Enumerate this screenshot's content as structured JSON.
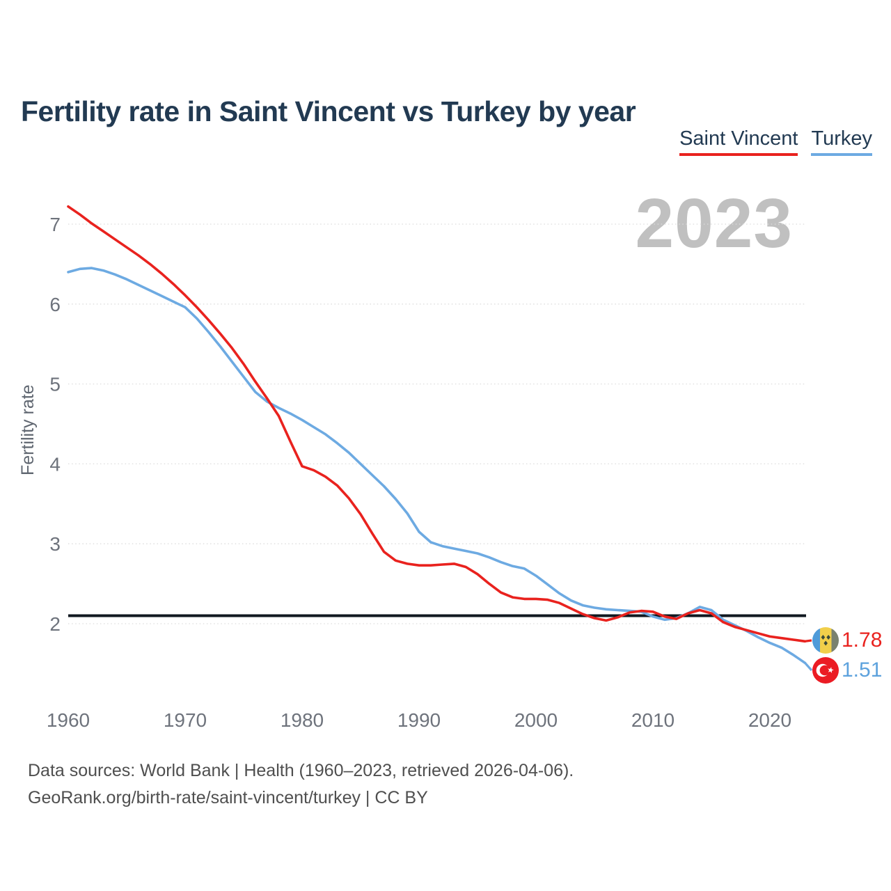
{
  "header": {
    "title": "Fertility rate in Saint Vincent vs Turkey by year"
  },
  "legend": [
    {
      "label": "Saint Vincent",
      "color": "#e9221e"
    },
    {
      "label": "Turkey",
      "color": "#6daae2"
    }
  ],
  "watermark": {
    "year": "2023"
  },
  "y_axis": {
    "label": "Fertility rate",
    "ticks": [
      7,
      6,
      5,
      4,
      3,
      2
    ]
  },
  "x_axis": {
    "ticks": [
      1960,
      1970,
      1980,
      1990,
      2000,
      2010,
      2020
    ]
  },
  "end_labels": [
    {
      "series": "Saint Vincent",
      "value": "1.78",
      "color": "#e9221e",
      "flag": "saint-vincent-flag"
    },
    {
      "series": "Turkey",
      "value": "1.51",
      "color": "#5da2dd",
      "flag": "turkey-flag"
    }
  ],
  "footer": {
    "line1": "Data sources: World Bank | Health (1960–2023, retrieved 2026-04-06).",
    "line2": "GeoRank.org/birth-rate/saint-vincent/turkey | CC BY"
  },
  "chart_data": {
    "type": "line",
    "title": "Fertility rate in Saint Vincent vs Turkey by year",
    "xlabel": "",
    "ylabel": "Fertility rate",
    "xlim": [
      1960,
      2023
    ],
    "ylim": [
      1.45,
      7.3
    ],
    "y_ticks": [
      2,
      3,
      4,
      5,
      6,
      7
    ],
    "x_ticks": [
      1960,
      1970,
      1980,
      1990,
      2000,
      2010,
      2020
    ],
    "grid": "horizontal-dotted",
    "legend_position": "top-right",
    "annotations": {
      "reference_line": 2.1,
      "watermark": "2023"
    },
    "x": [
      1960,
      1961,
      1962,
      1963,
      1964,
      1965,
      1966,
      1967,
      1968,
      1969,
      1970,
      1971,
      1972,
      1973,
      1974,
      1975,
      1976,
      1977,
      1978,
      1979,
      1980,
      1981,
      1982,
      1983,
      1984,
      1985,
      1986,
      1987,
      1988,
      1989,
      1990,
      1991,
      1992,
      1993,
      1994,
      1995,
      1996,
      1997,
      1998,
      1999,
      2000,
      2001,
      2002,
      2003,
      2004,
      2005,
      2006,
      2007,
      2008,
      2009,
      2010,
      2011,
      2012,
      2013,
      2014,
      2015,
      2016,
      2017,
      2018,
      2019,
      2020,
      2021,
      2022,
      2023
    ],
    "series": [
      {
        "name": "Saint Vincent",
        "color": "#e9221e",
        "values": [
          7.22,
          7.12,
          7.01,
          6.91,
          6.81,
          6.71,
          6.61,
          6.5,
          6.38,
          6.25,
          6.11,
          5.96,
          5.8,
          5.63,
          5.45,
          5.25,
          5.03,
          4.82,
          4.6,
          4.28,
          3.97,
          3.92,
          3.84,
          3.73,
          3.57,
          3.37,
          3.13,
          2.9,
          2.79,
          2.75,
          2.73,
          2.73,
          2.74,
          2.75,
          2.71,
          2.62,
          2.5,
          2.39,
          2.33,
          2.31,
          2.31,
          2.3,
          2.26,
          2.19,
          2.12,
          2.07,
          2.04,
          2.08,
          2.14,
          2.16,
          2.15,
          2.09,
          2.06,
          2.13,
          2.17,
          2.13,
          2.02,
          1.96,
          1.92,
          1.88,
          1.84,
          1.82,
          1.8,
          1.78
        ]
      },
      {
        "name": "Turkey",
        "color": "#6daae2",
        "values": [
          6.4,
          6.44,
          6.45,
          6.42,
          6.37,
          6.31,
          6.24,
          6.17,
          6.1,
          6.03,
          5.96,
          5.82,
          5.65,
          5.47,
          5.28,
          5.09,
          4.9,
          4.78,
          4.7,
          4.63,
          4.55,
          4.46,
          4.37,
          4.26,
          4.14,
          4.0,
          3.86,
          3.72,
          3.56,
          3.38,
          3.15,
          3.02,
          2.97,
          2.94,
          2.91,
          2.88,
          2.83,
          2.77,
          2.72,
          2.69,
          2.6,
          2.49,
          2.38,
          2.29,
          2.23,
          2.2,
          2.18,
          2.17,
          2.16,
          2.15,
          2.09,
          2.05,
          2.07,
          2.13,
          2.21,
          2.17,
          2.05,
          1.98,
          1.91,
          1.83,
          1.76,
          1.7,
          1.61,
          1.51
        ]
      }
    ]
  }
}
